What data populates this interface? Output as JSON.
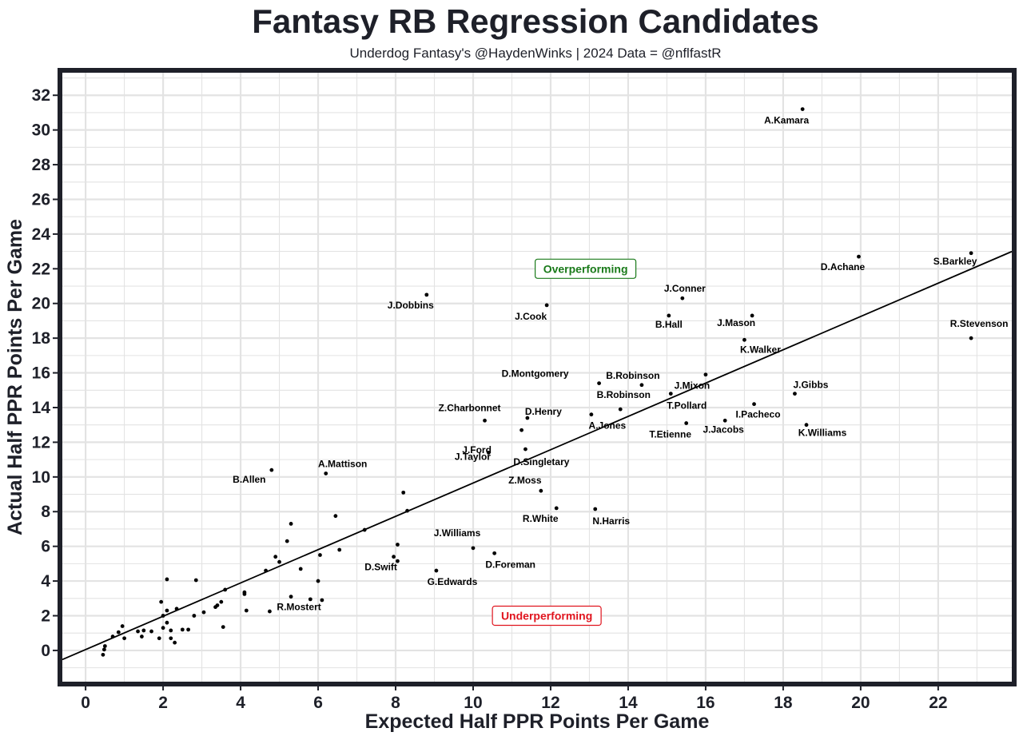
{
  "chart_data": {
    "type": "scatter",
    "title": "Fantasy RB Regression Candidates",
    "subtitle": "Underdog Fantasy's @HaydenWinks | 2024 Data = @nflfastR",
    "xlabel": "Expected Half PPR Points Per Game",
    "ylabel": "Actual Half PPR Points Per Game",
    "xlim": [
      -0.6,
      23.9
    ],
    "ylim": [
      -1.8,
      33.3
    ],
    "xticks": [
      0,
      2,
      4,
      6,
      8,
      10,
      12,
      14,
      16,
      18,
      20,
      22
    ],
    "yticks": [
      0,
      2,
      4,
      6,
      8,
      10,
      12,
      14,
      16,
      18,
      20,
      22,
      24,
      26,
      28,
      30,
      32
    ],
    "grid": true,
    "trendline": {
      "slope": 0.96,
      "intercept": 0.05
    },
    "annotations": [
      {
        "text": "Overperforming",
        "x": 12.9,
        "y": 22.0,
        "color": "#1a7a1a"
      },
      {
        "text": "Underperforming",
        "x": 11.9,
        "y": 2.0,
        "color": "#e0141e"
      }
    ],
    "labeled_points": [
      {
        "name": "A.Kamara",
        "x": 18.5,
        "y": 31.2
      },
      {
        "name": "D.Achane",
        "x": 19.95,
        "y": 22.7
      },
      {
        "name": "S.Barkley",
        "x": 22.85,
        "y": 22.9
      },
      {
        "name": "R.Stevenson",
        "x": 22.85,
        "y": 18.0
      },
      {
        "name": "J.Dobbins",
        "x": 8.8,
        "y": 20.5
      },
      {
        "name": "J.Cook",
        "x": 11.9,
        "y": 19.9
      },
      {
        "name": "J.Conner",
        "x": 15.4,
        "y": 20.3
      },
      {
        "name": "B.Hall",
        "x": 15.05,
        "y": 19.3
      },
      {
        "name": "J.Mason",
        "x": 17.2,
        "y": 19.3
      },
      {
        "name": "K.Walker",
        "x": 17.0,
        "y": 17.9
      },
      {
        "name": "D.Montgomery",
        "x": 13.25,
        "y": 15.4
      },
      {
        "name": "B.Robinson",
        "x": 14.35,
        "y": 15.3
      },
      {
        "name": "J.Mixon",
        "x": 16.0,
        "y": 15.9
      },
      {
        "name": "B.Robinson",
        "x": 13.8,
        "y": 13.9
      },
      {
        "name": "T.Pollard",
        "x": 15.1,
        "y": 14.8
      },
      {
        "name": "J.Gibbs",
        "x": 18.3,
        "y": 14.8
      },
      {
        "name": "I.Pacheco",
        "x": 17.25,
        "y": 14.2
      },
      {
        "name": "K.Williams",
        "x": 18.6,
        "y": 13.0
      },
      {
        "name": "Z.Charbonnet",
        "x": 10.3,
        "y": 13.25
      },
      {
        "name": "D.Henry",
        "x": 11.4,
        "y": 13.4
      },
      {
        "name": "A.Jones",
        "x": 13.05,
        "y": 13.6
      },
      {
        "name": "T.Etienne",
        "x": 15.5,
        "y": 13.1
      },
      {
        "name": "J.Jacobs",
        "x": 16.5,
        "y": 13.25
      },
      {
        "name": "J.Taylor",
        "x": 10.4,
        "y": 11.4
      },
      {
        "name": "J.Ford",
        "x": 11.25,
        "y": 12.7
      },
      {
        "name": "D.Singletary",
        "x": 11.35,
        "y": 11.6
      },
      {
        "name": "A.Mattison",
        "x": 6.2,
        "y": 10.2
      },
      {
        "name": "B.Allen",
        "x": 4.8,
        "y": 10.4
      },
      {
        "name": "Z.Moss",
        "x": 11.75,
        "y": 9.2
      },
      {
        "name": "R.White",
        "x": 12.15,
        "y": 8.2
      },
      {
        "name": "N.Harris",
        "x": 13.15,
        "y": 8.15
      },
      {
        "name": "J.Williams",
        "x": 10.0,
        "y": 5.9
      },
      {
        "name": "D.Foreman",
        "x": 10.55,
        "y": 5.6
      },
      {
        "name": "D.Swift",
        "x": 7.95,
        "y": 5.4
      },
      {
        "name": "G.Edwards",
        "x": 9.05,
        "y": 4.6
      },
      {
        "name": "R.Mostert",
        "x": 5.3,
        "y": 3.1
      }
    ],
    "unlabeled_points": [
      {
        "x": 0.45,
        "y": -0.25
      },
      {
        "x": 0.48,
        "y": 0.05
      },
      {
        "x": 0.5,
        "y": 0.25
      },
      {
        "x": 0.7,
        "y": 0.8
      },
      {
        "x": 0.85,
        "y": 1.05
      },
      {
        "x": 0.95,
        "y": 1.4
      },
      {
        "x": 1.0,
        "y": 0.7
      },
      {
        "x": 1.35,
        "y": 1.1
      },
      {
        "x": 1.45,
        "y": 0.8
      },
      {
        "x": 1.5,
        "y": 1.15
      },
      {
        "x": 1.7,
        "y": 1.1
      },
      {
        "x": 1.9,
        "y": 0.7
      },
      {
        "x": 1.95,
        "y": 2.8
      },
      {
        "x": 2.0,
        "y": 1.3
      },
      {
        "x": 2.0,
        "y": 2.0
      },
      {
        "x": 2.1,
        "y": 2.3
      },
      {
        "x": 2.1,
        "y": 1.6
      },
      {
        "x": 2.1,
        "y": 4.1
      },
      {
        "x": 2.2,
        "y": 1.15
      },
      {
        "x": 2.2,
        "y": 0.7
      },
      {
        "x": 2.3,
        "y": 0.45
      },
      {
        "x": 2.35,
        "y": 2.4
      },
      {
        "x": 2.5,
        "y": 1.2
      },
      {
        "x": 2.65,
        "y": 1.2
      },
      {
        "x": 2.8,
        "y": 2.0
      },
      {
        "x": 2.85,
        "y": 4.05
      },
      {
        "x": 3.05,
        "y": 2.2
      },
      {
        "x": 3.35,
        "y": 2.5
      },
      {
        "x": 3.4,
        "y": 2.6
      },
      {
        "x": 3.5,
        "y": 2.8
      },
      {
        "x": 3.55,
        "y": 1.35
      },
      {
        "x": 3.6,
        "y": 3.5
      },
      {
        "x": 4.1,
        "y": 3.35
      },
      {
        "x": 4.1,
        "y": 3.25
      },
      {
        "x": 4.15,
        "y": 2.3
      },
      {
        "x": 4.65,
        "y": 4.6
      },
      {
        "x": 4.75,
        "y": 2.25
      },
      {
        "x": 4.9,
        "y": 5.4
      },
      {
        "x": 5.0,
        "y": 5.1
      },
      {
        "x": 5.2,
        "y": 6.3
      },
      {
        "x": 5.3,
        "y": 7.3
      },
      {
        "x": 5.55,
        "y": 4.7
      },
      {
        "x": 5.8,
        "y": 2.95
      },
      {
        "x": 6.0,
        "y": 4.0
      },
      {
        "x": 6.05,
        "y": 5.5
      },
      {
        "x": 6.1,
        "y": 2.9
      },
      {
        "x": 6.45,
        "y": 7.75
      },
      {
        "x": 6.55,
        "y": 5.8
      },
      {
        "x": 7.2,
        "y": 6.95
      },
      {
        "x": 8.05,
        "y": 6.1
      },
      {
        "x": 8.2,
        "y": 9.1
      },
      {
        "x": 8.3,
        "y": 8.05
      },
      {
        "x": 8.05,
        "y": 5.15
      }
    ]
  }
}
